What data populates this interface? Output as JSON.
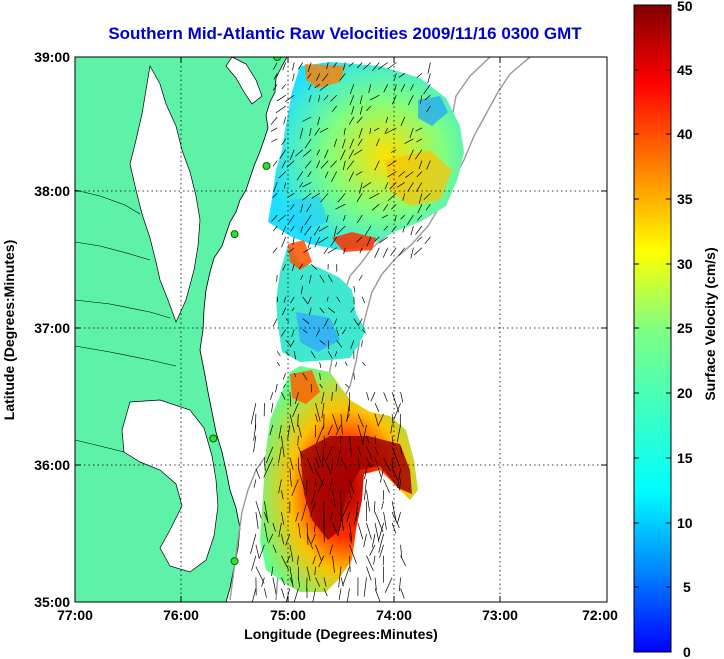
{
  "figure": {
    "title": "Southern Mid-Atlantic Raw Velocities 2009/11/16 0300 GMT",
    "title_color": "#0000cc",
    "xlabel": "Longitude (Degrees:Minutes)",
    "ylabel": "Latitude (Degrees:Minutes)",
    "x_ticks": [
      "77:00",
      "76:00",
      "75:00",
      "74:00",
      "73:00",
      "72:00"
    ],
    "y_ticks": [
      "39:00",
      "38:00",
      "37:00",
      "36:00",
      "35:00"
    ],
    "land_color": "#5ef2a8",
    "sea_color": "#ffffff",
    "bathymetry_color": "#999999"
  },
  "colorbar": {
    "label": "Surface Velocity (cm/s)",
    "ticks": [
      "50",
      "45",
      "40",
      "35",
      "30",
      "25",
      "20",
      "15",
      "10",
      "5",
      "0"
    ],
    "range": [
      0,
      50
    ]
  },
  "chart_data": {
    "type": "heatmap",
    "title": "Southern Mid-Atlantic Raw Velocities 2009/11/16 0300 GMT",
    "xlabel": "Longitude (Degrees:Minutes)",
    "ylabel": "Latitude (Degrees:Minutes)",
    "xlim": [
      -77,
      -72
    ],
    "ylim": [
      35,
      39
    ],
    "grid": true,
    "colorbar_label": "Surface Velocity (cm/s)",
    "colorbar_range": [
      0,
      50
    ],
    "velocity_regions": [
      {
        "lon": [
          -75.1,
          -73.6
        ],
        "lat": [
          37.6,
          39.0
        ],
        "dominant_speed": 17
      },
      {
        "lon": [
          -75.1,
          -74.3
        ],
        "lat": [
          36.6,
          37.5
        ],
        "dominant_speed": 15
      },
      {
        "lon": [
          -75.3,
          -73.9
        ],
        "lat": [
          35.1,
          36.6
        ],
        "dominant_speed": 38
      }
    ],
    "station_markers": [
      {
        "lon": -75.1,
        "lat": 39.0
      },
      {
        "lon": -75.2,
        "lat": 38.2
      },
      {
        "lon": -75.5,
        "lat": 37.7
      },
      {
        "lon": -75.7,
        "lat": 36.2
      },
      {
        "lon": -75.5,
        "lat": 35.3
      }
    ]
  }
}
